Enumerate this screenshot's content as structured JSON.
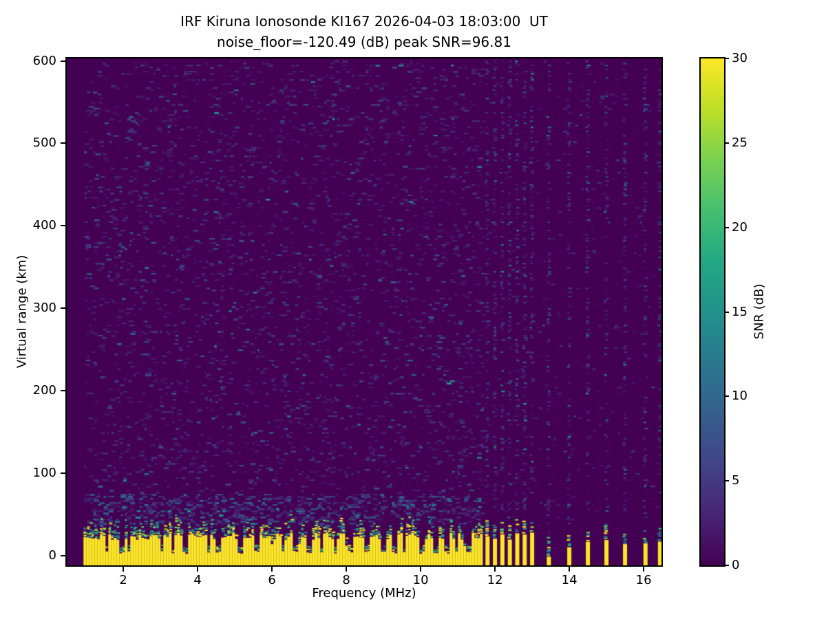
{
  "figure": {
    "title_line1": "IRF Kiruna Ionosonde KI167 2026-04-03 18:03:00  UT",
    "title_line2": "noise_floor=-120.49 (dB) peak SNR=96.81"
  },
  "chart_data": {
    "type": "heatmap",
    "title": "IRF Kiruna Ionosonde KI167 2026-04-03 18:03:00  UT",
    "subtitle": "noise_floor=-120.49 (dB) peak SNR=96.81",
    "station": "KI167",
    "timestamp_ut": "2026-04-03 18:03:00",
    "noise_floor_db": -120.49,
    "peak_snr_db": 96.81,
    "xlabel": "Frequency (MHz)",
    "ylabel": "Virtual range (km)",
    "x_ticks": [
      2,
      4,
      6,
      8,
      10,
      12,
      14,
      16
    ],
    "y_ticks": [
      0,
      100,
      200,
      300,
      400,
      500,
      600
    ],
    "x_range_mhz": [
      0.48,
      16.48
    ],
    "y_range_km": [
      -12,
      603
    ],
    "grid": false,
    "colormap": "viridis",
    "colorbar": {
      "label": "SNR (dB)",
      "ticks": [
        0,
        5,
        10,
        15,
        20,
        25,
        30
      ],
      "range_db": [
        0,
        30
      ],
      "position": "right"
    },
    "sweep_start_mhz": 0.93,
    "ground_echo_band": {
      "freq_start_mhz": 0.93,
      "freq_end_mhz": 11.65,
      "solid_top_km_mean": 25,
      "mottled_top_km": 45,
      "base_km": -12
    },
    "echo_gap_freqs_mhz": [
      1.55,
      1.95,
      2.15,
      3.05,
      3.35,
      3.67,
      4.3,
      4.55,
      5.15,
      5.6,
      6.3,
      6.65,
      7.0,
      7.35,
      7.7,
      8.1,
      8.55,
      9.0,
      9.3,
      9.55,
      10.05,
      10.4,
      10.7,
      10.95,
      11.3
    ],
    "interference_stripes": [
      {
        "mhz": 11.8,
        "type": "cluster"
      },
      {
        "mhz": 12.0,
        "type": "cluster"
      },
      {
        "mhz": 12.2,
        "type": "cluster"
      },
      {
        "mhz": 12.4,
        "type": "cluster"
      },
      {
        "mhz": 12.6,
        "type": "cluster"
      },
      {
        "mhz": 12.8,
        "type": "cluster"
      },
      {
        "mhz": 13.0,
        "type": "cluster"
      },
      {
        "mhz": 13.45,
        "type": "weak"
      },
      {
        "mhz": 14.0,
        "type": "strong"
      },
      {
        "mhz": 14.5,
        "type": "strong"
      },
      {
        "mhz": 15.0,
        "type": "strong"
      },
      {
        "mhz": 15.5,
        "type": "strong"
      },
      {
        "mhz": 16.05,
        "type": "strong"
      },
      {
        "mhz": 16.44,
        "type": "strong"
      }
    ],
    "colors": {
      "plot_background": "#440154",
      "echo_strong": "#fde725",
      "speckle_palette": [
        "#481a6c",
        "#472f7d",
        "#433e85",
        "#3d4e8a",
        "#355f8d",
        "#2d708e",
        "#21918c"
      ],
      "band_mottle_palette": [
        "#fde725",
        "#d2e21b",
        "#a5db36",
        "#6ece58",
        "#35b779",
        "#20a386",
        "#21918c",
        "#2a788e",
        "#31688e",
        "#3e4989"
      ],
      "colorbar_stops": [
        "#440154",
        "#482475",
        "#414487",
        "#355f8d",
        "#2a788e",
        "#21918c",
        "#22a884",
        "#44bf70",
        "#7ad151",
        "#bddf26",
        "#fde725"
      ]
    }
  }
}
